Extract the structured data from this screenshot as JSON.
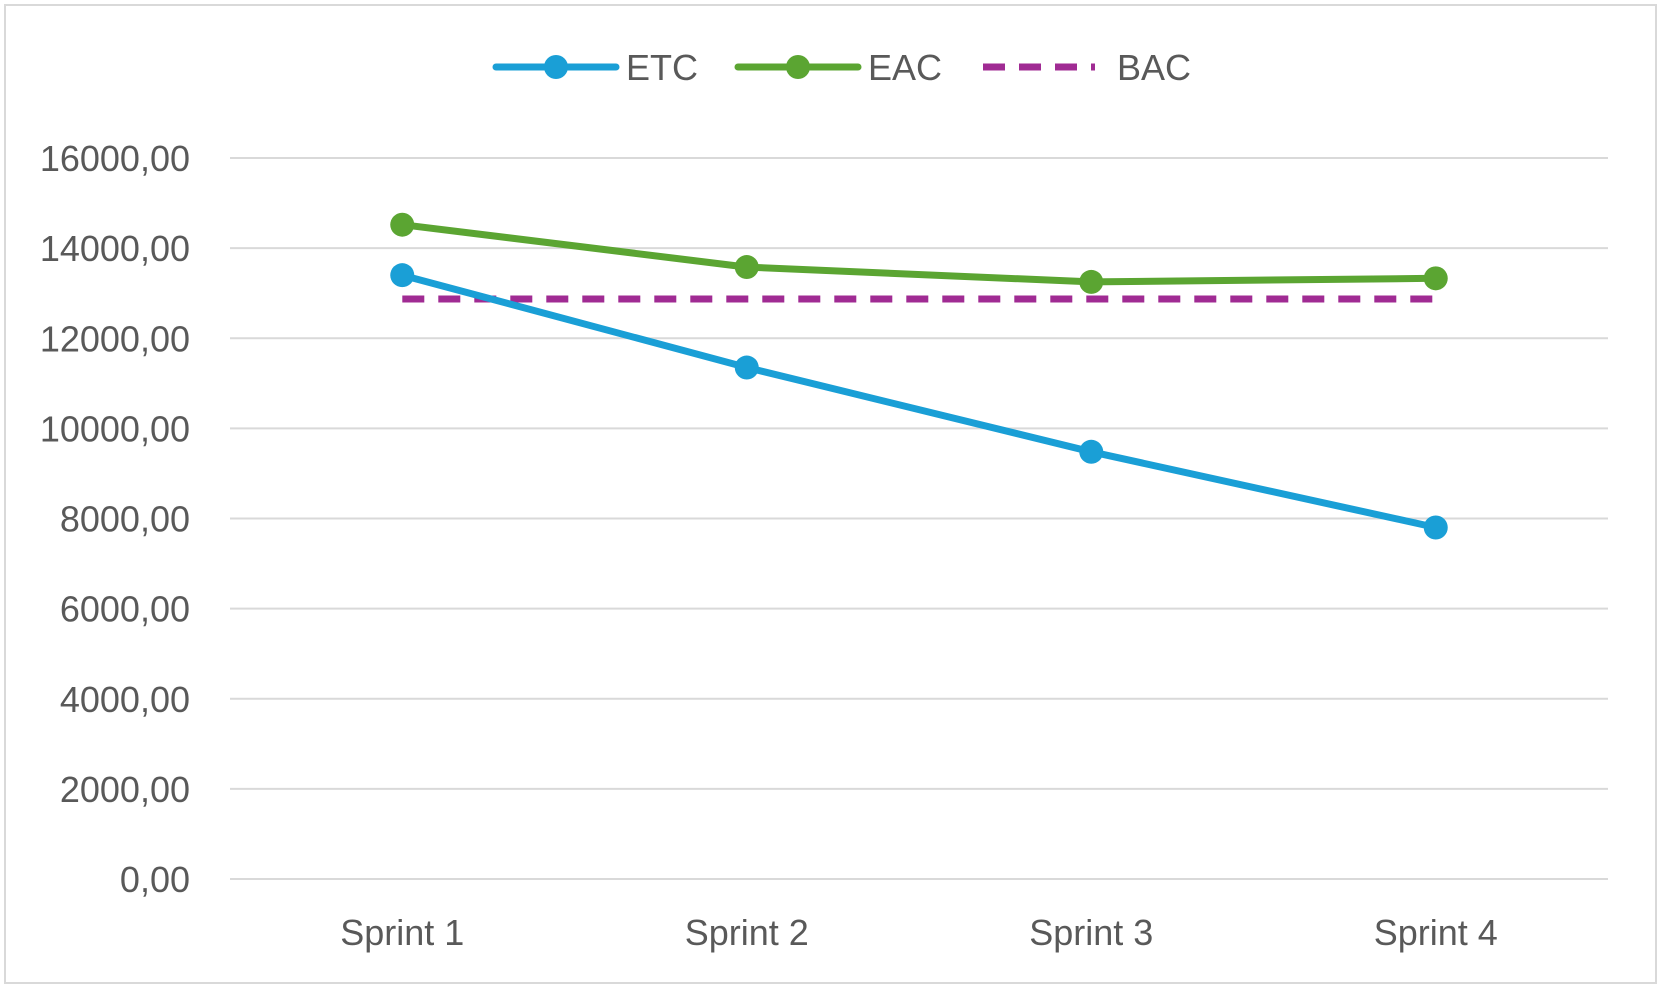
{
  "chart_data": {
    "type": "line",
    "title": "",
    "xlabel": "",
    "ylabel": "",
    "categories": [
      "Sprint 1",
      "Sprint 2",
      "Sprint 3",
      "Sprint 4"
    ],
    "ylim": [
      0,
      16000
    ],
    "y_ticks": [
      0,
      2000,
      4000,
      6000,
      8000,
      10000,
      12000,
      14000,
      16000
    ],
    "y_tick_labels": [
      "0,00",
      "2000,00",
      "4000,00",
      "6000,00",
      "8000,00",
      "10000,00",
      "12000,00",
      "14000,00",
      "16000,00"
    ],
    "grid": true,
    "legend_position": "top",
    "series": [
      {
        "name": "ETC",
        "values": [
          13400,
          11350,
          9480,
          7800
        ],
        "color": "#1a9fd6",
        "style": "solid",
        "markers": true
      },
      {
        "name": "EAC",
        "values": [
          14520,
          13580,
          13250,
          13330
        ],
        "color": "#5ba532",
        "style": "solid",
        "markers": true
      },
      {
        "name": "BAC",
        "values": [
          12870,
          12870,
          12870,
          12870
        ],
        "color": "#a02b93",
        "style": "dashed",
        "markers": false
      }
    ]
  }
}
